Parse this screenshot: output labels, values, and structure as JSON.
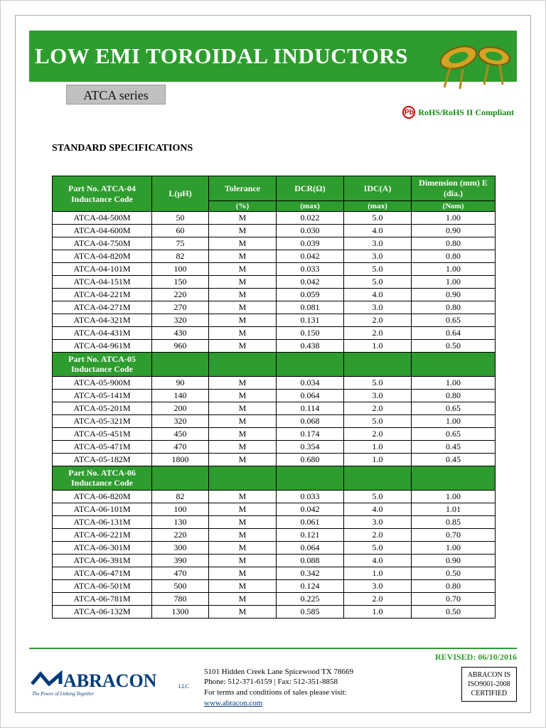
{
  "header": {
    "title": "LOW EMI TOROIDAL INDUCTORS",
    "series": "ATCA series",
    "pb_label": "Pb",
    "compliance": "RoHS/RoHS II Compliant"
  },
  "spec_title": "STANDARD SPECIFICATIONS",
  "table": {
    "columns": {
      "part": "Part No. ATCA-04 Inductance Code",
      "l": "L(µH)",
      "tol": "Tolerance",
      "dcr": "DCR(Ω)",
      "idc": "IDC(A)",
      "dim": "Dimension (mm) E (dia.)",
      "tol_sub": "(%)",
      "dcr_sub": "(max)",
      "idc_sub": "(max)",
      "dim_sub": "(Nom)"
    },
    "sections": [
      {
        "rows": [
          {
            "part": "ATCA-04-500M",
            "l": "50",
            "tol": "M",
            "dcr": "0.022",
            "idc": "5.0",
            "dim": "1.00"
          },
          {
            "part": "ATCA-04-600M",
            "l": "60",
            "tol": "M",
            "dcr": "0.030",
            "idc": "4.0",
            "dim": "0.90"
          },
          {
            "part": "ATCA-04-750M",
            "l": "75",
            "tol": "M",
            "dcr": "0.039",
            "idc": "3.0",
            "dim": "0.80"
          },
          {
            "part": "ATCA-04-820M",
            "l": "82",
            "tol": "M",
            "dcr": "0.042",
            "idc": "3.0",
            "dim": "0.80"
          },
          {
            "part": "ATCA-04-101M",
            "l": "100",
            "tol": "M",
            "dcr": "0.033",
            "idc": "5.0",
            "dim": "1.00"
          },
          {
            "part": "ATCA-04-151M",
            "l": "150",
            "tol": "M",
            "dcr": "0.042",
            "idc": "5.0",
            "dim": "1.00"
          },
          {
            "part": "ATCA-04-221M",
            "l": "220",
            "tol": "M",
            "dcr": "0.059",
            "idc": "4.0",
            "dim": "0.90"
          },
          {
            "part": "ATCA-04-271M",
            "l": "270",
            "tol": "M",
            "dcr": "0.081",
            "idc": "3.0",
            "dim": "0.80"
          },
          {
            "part": "ATCA-04-321M",
            "l": "320",
            "tol": "M",
            "dcr": "0.131",
            "idc": "2.0",
            "dim": "0.65"
          },
          {
            "part": "ATCA-04-431M",
            "l": "430",
            "tol": "M",
            "dcr": "0.150",
            "idc": "2.0",
            "dim": "0.64"
          },
          {
            "part": "ATCA-04-961M",
            "l": "960",
            "tol": "M",
            "dcr": "0.438",
            "idc": "1.0",
            "dim": "0.50"
          }
        ]
      },
      {
        "label": "Part No. ATCA-05 Inductance Code",
        "rows": [
          {
            "part": "ATCA-05-900M",
            "l": "90",
            "tol": "M",
            "dcr": "0.034",
            "idc": "5.0",
            "dim": "1.00"
          },
          {
            "part": "ATCA-05-141M",
            "l": "140",
            "tol": "M",
            "dcr": "0.064",
            "idc": "3.0",
            "dim": "0.80"
          },
          {
            "part": "ATCA-05-201M",
            "l": "200",
            "tol": "M",
            "dcr": "0.114",
            "idc": "2.0",
            "dim": "0.65"
          },
          {
            "part": "ATCA-05-321M",
            "l": "320",
            "tol": "M",
            "dcr": "0.068",
            "idc": "5.0",
            "dim": "1.00"
          },
          {
            "part": "ATCA-05-451M",
            "l": "450",
            "tol": "M",
            "dcr": "0.174",
            "idc": "2.0",
            "dim": "0.65"
          },
          {
            "part": "ATCA-05-471M",
            "l": "470",
            "tol": "M",
            "dcr": "0.354",
            "idc": "1.0",
            "dim": "0.45"
          },
          {
            "part": "ATCA-05-182M",
            "l": "1800",
            "tol": "M",
            "dcr": "0.680",
            "idc": "1.0",
            "dim": "0.45"
          }
        ]
      },
      {
        "label": "Part No. ATCA-06 Inductance Code",
        "rows": [
          {
            "part": "ATCA-06-820M",
            "l": "82",
            "tol": "M",
            "dcr": "0.033",
            "idc": "5.0",
            "dim": "1.00"
          },
          {
            "part": "ATCA-06-101M",
            "l": "100",
            "tol": "M",
            "dcr": "0.042",
            "idc": "4.0",
            "dim": "1.01"
          },
          {
            "part": "ATCA-06-131M",
            "l": "130",
            "tol": "M",
            "dcr": "0.061",
            "idc": "3.0",
            "dim": "0.85"
          },
          {
            "part": "ATCA-06-221M",
            "l": "220",
            "tol": "M",
            "dcr": "0.121",
            "idc": "2.0",
            "dim": "0.70"
          },
          {
            "part": "ATCA-06-301M",
            "l": "300",
            "tol": "M",
            "dcr": "0.064",
            "idc": "5.0",
            "dim": "1.00"
          },
          {
            "part": "ATCA-06-391M",
            "l": "390",
            "tol": "M",
            "dcr": "0.088",
            "idc": "4.0",
            "dim": "0.90"
          },
          {
            "part": "ATCA-06-471M",
            "l": "470",
            "tol": "M",
            "dcr": "0.342",
            "idc": "1.0",
            "dim": "0.50"
          },
          {
            "part": "ATCA-06-501M",
            "l": "500",
            "tol": "M",
            "dcr": "0.124",
            "idc": "3.0",
            "dim": "0.80"
          },
          {
            "part": "ATCA-06-781M",
            "l": "780",
            "tol": "M",
            "dcr": "0.225",
            "idc": "2.0",
            "dim": "0.70"
          },
          {
            "part": "ATCA-06-132M",
            "l": "1300",
            "tol": "M",
            "dcr": "0.585",
            "idc": "1.0",
            "dim": "0.50"
          }
        ]
      }
    ]
  },
  "footer": {
    "revised": "REVISED:  06/10/2016",
    "logo": "ABRACON",
    "logo_suffix": "LLC",
    "tagline": "The Power of Linking Together",
    "address": "5101 Hidden Creek Lane Spicewood TX 78669",
    "phone": "Phone: 512-371-6159 | Fax: 512-351-8858",
    "terms": "For terms and conditions of sales please visit:",
    "url": "www.abracon.com",
    "cert1": "ABRACON IS",
    "cert2": "ISO9001-2008",
    "cert3": "CERTIFIED"
  },
  "colors": {
    "green": "#2e9c2e",
    "blue": "#003a7a",
    "gray": "#c0c0c0"
  }
}
